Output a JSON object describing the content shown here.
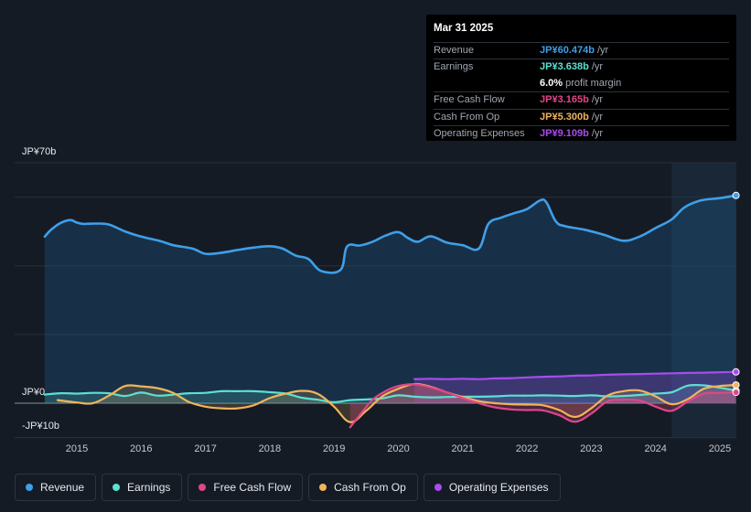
{
  "tooltip": {
    "date": "Mar 31 2025",
    "rows": [
      {
        "label": "Revenue",
        "value": "JP¥60.474b",
        "unit": "/yr",
        "color": "#3f9fe8"
      },
      {
        "label": "Earnings",
        "value": "JP¥3.638b",
        "unit": "/yr",
        "color": "#5ce0d0"
      },
      {
        "label": "",
        "value": "6.0%",
        "unit": "profit margin",
        "color": "#ffffff"
      },
      {
        "label": "Free Cash Flow",
        "value": "JP¥3.165b",
        "unit": "/yr",
        "color": "#e0468a"
      },
      {
        "label": "Cash From Op",
        "value": "JP¥5.300b",
        "unit": "/yr",
        "color": "#f0b45a"
      },
      {
        "label": "Operating Expenses",
        "value": "JP¥9.109b",
        "unit": "/yr",
        "color": "#a84cf0"
      }
    ]
  },
  "colors": {
    "revenue": "#3f9fe8",
    "earnings": "#5ce0d0",
    "fcf": "#e0468a",
    "cfo": "#f0b45a",
    "opex": "#a84cf0"
  },
  "chart_data": {
    "type": "line",
    "title": "",
    "ylabel_top": "JP¥70b",
    "ylabel_zero": "JP¥0",
    "ylabel_bottom": "-JP¥10b",
    "ylim": [
      -10,
      70
    ],
    "xlim": [
      2014.2,
      2025.3
    ],
    "x_ticks": [
      "2015",
      "2016",
      "2017",
      "2018",
      "2019",
      "2020",
      "2021",
      "2022",
      "2023",
      "2024",
      "2025"
    ],
    "forecast_start": 2024.25,
    "series": [
      {
        "name": "Revenue",
        "key": "revenue",
        "area": true,
        "points": [
          [
            2014.5,
            48.5
          ],
          [
            2014.6,
            50.5
          ],
          [
            2014.75,
            52.5
          ],
          [
            2014.9,
            53.3
          ],
          [
            2015.0,
            52.6
          ],
          [
            2015.1,
            52.2
          ],
          [
            2015.3,
            52.3
          ],
          [
            2015.5,
            52.0
          ],
          [
            2015.75,
            50.0
          ],
          [
            2016.0,
            48.5
          ],
          [
            2016.3,
            47.2
          ],
          [
            2016.5,
            46.0
          ],
          [
            2016.8,
            45.0
          ],
          [
            2017.0,
            43.5
          ],
          [
            2017.25,
            43.8
          ],
          [
            2017.5,
            44.6
          ],
          [
            2017.75,
            45.3
          ],
          [
            2018.0,
            45.7
          ],
          [
            2018.2,
            45.0
          ],
          [
            2018.4,
            43.0
          ],
          [
            2018.6,
            42.0
          ],
          [
            2018.8,
            38.5
          ],
          [
            2019.1,
            38.8
          ],
          [
            2019.2,
            45.6
          ],
          [
            2019.4,
            45.9
          ],
          [
            2019.6,
            47.0
          ],
          [
            2019.8,
            48.8
          ],
          [
            2020.0,
            49.8
          ],
          [
            2020.15,
            48.1
          ],
          [
            2020.3,
            47.0
          ],
          [
            2020.5,
            48.6
          ],
          [
            2020.75,
            46.8
          ],
          [
            2021.0,
            46.0
          ],
          [
            2021.25,
            45.0
          ],
          [
            2021.4,
            52.2
          ],
          [
            2021.6,
            54.0
          ],
          [
            2021.8,
            55.3
          ],
          [
            2022.0,
            56.5
          ],
          [
            2022.2,
            59.0
          ],
          [
            2022.3,
            58.5
          ],
          [
            2022.45,
            52.9
          ],
          [
            2022.6,
            51.5
          ],
          [
            2022.9,
            50.5
          ],
          [
            2023.2,
            49.0
          ],
          [
            2023.5,
            47.3
          ],
          [
            2023.75,
            48.5
          ],
          [
            2024.0,
            51.0
          ],
          [
            2024.25,
            53.5
          ],
          [
            2024.45,
            57.0
          ],
          [
            2024.7,
            59.0
          ],
          [
            2025.0,
            59.7
          ],
          [
            2025.25,
            60.47
          ]
        ]
      },
      {
        "name": "Earnings",
        "key": "earnings",
        "area": true,
        "points": [
          [
            2014.5,
            2.5
          ],
          [
            2014.75,
            2.9
          ],
          [
            2015.0,
            2.8
          ],
          [
            2015.25,
            3.0
          ],
          [
            2015.5,
            2.9
          ],
          [
            2015.75,
            2.1
          ],
          [
            2016.0,
            3.1
          ],
          [
            2016.25,
            2.2
          ],
          [
            2016.5,
            2.5
          ],
          [
            2016.75,
            2.9
          ],
          [
            2017.0,
            3.0
          ],
          [
            2017.25,
            3.5
          ],
          [
            2017.5,
            3.5
          ],
          [
            2017.75,
            3.5
          ],
          [
            2018.0,
            3.2
          ],
          [
            2018.25,
            2.8
          ],
          [
            2018.5,
            1.6
          ],
          [
            2018.75,
            1.0
          ],
          [
            2019.0,
            0.3
          ],
          [
            2019.25,
            0.9
          ],
          [
            2019.5,
            1.1
          ],
          [
            2019.75,
            1.4
          ],
          [
            2020.0,
            2.3
          ],
          [
            2020.25,
            1.9
          ],
          [
            2020.5,
            1.7
          ],
          [
            2020.75,
            1.8
          ],
          [
            2021.0,
            1.9
          ],
          [
            2021.25,
            1.9
          ],
          [
            2021.5,
            2.0
          ],
          [
            2021.75,
            2.2
          ],
          [
            2022.0,
            2.2
          ],
          [
            2022.25,
            2.3
          ],
          [
            2022.5,
            2.2
          ],
          [
            2022.75,
            2.1
          ],
          [
            2023.0,
            2.3
          ],
          [
            2023.25,
            2.0
          ],
          [
            2023.5,
            2.1
          ],
          [
            2023.75,
            2.4
          ],
          [
            2024.0,
            2.8
          ],
          [
            2024.25,
            3.2
          ],
          [
            2024.5,
            5.1
          ],
          [
            2024.75,
            5.2
          ],
          [
            2025.0,
            4.5
          ],
          [
            2025.25,
            3.64
          ]
        ]
      },
      {
        "name": "Free Cash Flow",
        "key": "fcf",
        "area": true,
        "points": [
          [
            2019.25,
            -7.0
          ],
          [
            2019.4,
            -3.5
          ],
          [
            2019.6,
            1.0
          ],
          [
            2019.8,
            3.5
          ],
          [
            2020.0,
            5.0
          ],
          [
            2020.25,
            5.5
          ],
          [
            2020.5,
            4.6
          ],
          [
            2020.75,
            3.2
          ],
          [
            2021.0,
            1.5
          ],
          [
            2021.25,
            0.0
          ],
          [
            2021.5,
            -1.2
          ],
          [
            2021.75,
            -1.8
          ],
          [
            2022.0,
            -2.0
          ],
          [
            2022.25,
            -2.1
          ],
          [
            2022.5,
            -3.5
          ],
          [
            2022.75,
            -5.4
          ],
          [
            2023.0,
            -3.0
          ],
          [
            2023.25,
            0.5
          ],
          [
            2023.5,
            1.0
          ],
          [
            2023.75,
            0.8
          ],
          [
            2024.0,
            -1.0
          ],
          [
            2024.25,
            -2.2
          ],
          [
            2024.5,
            0.5
          ],
          [
            2024.75,
            2.8
          ],
          [
            2025.0,
            3.0
          ],
          [
            2025.25,
            3.17
          ]
        ]
      },
      {
        "name": "Cash From Op",
        "key": "cfo",
        "area": true,
        "points": [
          [
            2014.7,
            0.9
          ],
          [
            2015.0,
            0.2
          ],
          [
            2015.25,
            0.0
          ],
          [
            2015.5,
            2.2
          ],
          [
            2015.75,
            5.0
          ],
          [
            2016.0,
            4.9
          ],
          [
            2016.25,
            4.4
          ],
          [
            2016.5,
            3.0
          ],
          [
            2016.75,
            0.3
          ],
          [
            2017.0,
            -1.0
          ],
          [
            2017.25,
            -1.5
          ],
          [
            2017.5,
            -1.5
          ],
          [
            2017.75,
            -0.6
          ],
          [
            2018.0,
            1.5
          ],
          [
            2018.25,
            2.8
          ],
          [
            2018.5,
            3.6
          ],
          [
            2018.75,
            2.7
          ],
          [
            2019.0,
            -1.0
          ],
          [
            2019.25,
            -5.5
          ],
          [
            2019.5,
            -2.2
          ],
          [
            2019.75,
            2.0
          ],
          [
            2020.0,
            4.2
          ],
          [
            2020.25,
            5.6
          ],
          [
            2020.5,
            4.8
          ],
          [
            2020.75,
            3.2
          ],
          [
            2021.0,
            1.8
          ],
          [
            2021.25,
            0.6
          ],
          [
            2021.5,
            0.0
          ],
          [
            2021.75,
            -0.3
          ],
          [
            2022.0,
            -0.4
          ],
          [
            2022.25,
            -0.6
          ],
          [
            2022.5,
            -2.0
          ],
          [
            2022.75,
            -4.0
          ],
          [
            2023.0,
            -1.5
          ],
          [
            2023.25,
            2.2
          ],
          [
            2023.5,
            3.5
          ],
          [
            2023.75,
            3.7
          ],
          [
            2024.0,
            2.0
          ],
          [
            2024.25,
            -0.3
          ],
          [
            2024.5,
            1.2
          ],
          [
            2024.75,
            4.2
          ],
          [
            2025.0,
            5.0
          ],
          [
            2025.25,
            5.3
          ]
        ]
      },
      {
        "name": "Operating Expenses",
        "key": "opex",
        "area": true,
        "points": [
          [
            2020.25,
            7.0
          ],
          [
            2020.5,
            7.1
          ],
          [
            2020.75,
            7.0
          ],
          [
            2021.0,
            7.1
          ],
          [
            2021.25,
            7.0
          ],
          [
            2021.5,
            7.2
          ],
          [
            2021.75,
            7.3
          ],
          [
            2022.0,
            7.5
          ],
          [
            2022.25,
            7.7
          ],
          [
            2022.5,
            7.8
          ],
          [
            2022.75,
            8.0
          ],
          [
            2023.0,
            8.1
          ],
          [
            2023.25,
            8.3
          ],
          [
            2023.5,
            8.4
          ],
          [
            2023.75,
            8.5
          ],
          [
            2024.0,
            8.6
          ],
          [
            2024.25,
            8.7
          ],
          [
            2024.5,
            8.8
          ],
          [
            2024.75,
            8.9
          ],
          [
            2025.0,
            9.0
          ],
          [
            2025.25,
            9.11
          ]
        ]
      }
    ]
  },
  "legend": [
    {
      "label": "Revenue",
      "key": "revenue"
    },
    {
      "label": "Earnings",
      "key": "earnings"
    },
    {
      "label": "Free Cash Flow",
      "key": "fcf"
    },
    {
      "label": "Cash From Op",
      "key": "cfo"
    },
    {
      "label": "Operating Expenses",
      "key": "opex"
    }
  ]
}
